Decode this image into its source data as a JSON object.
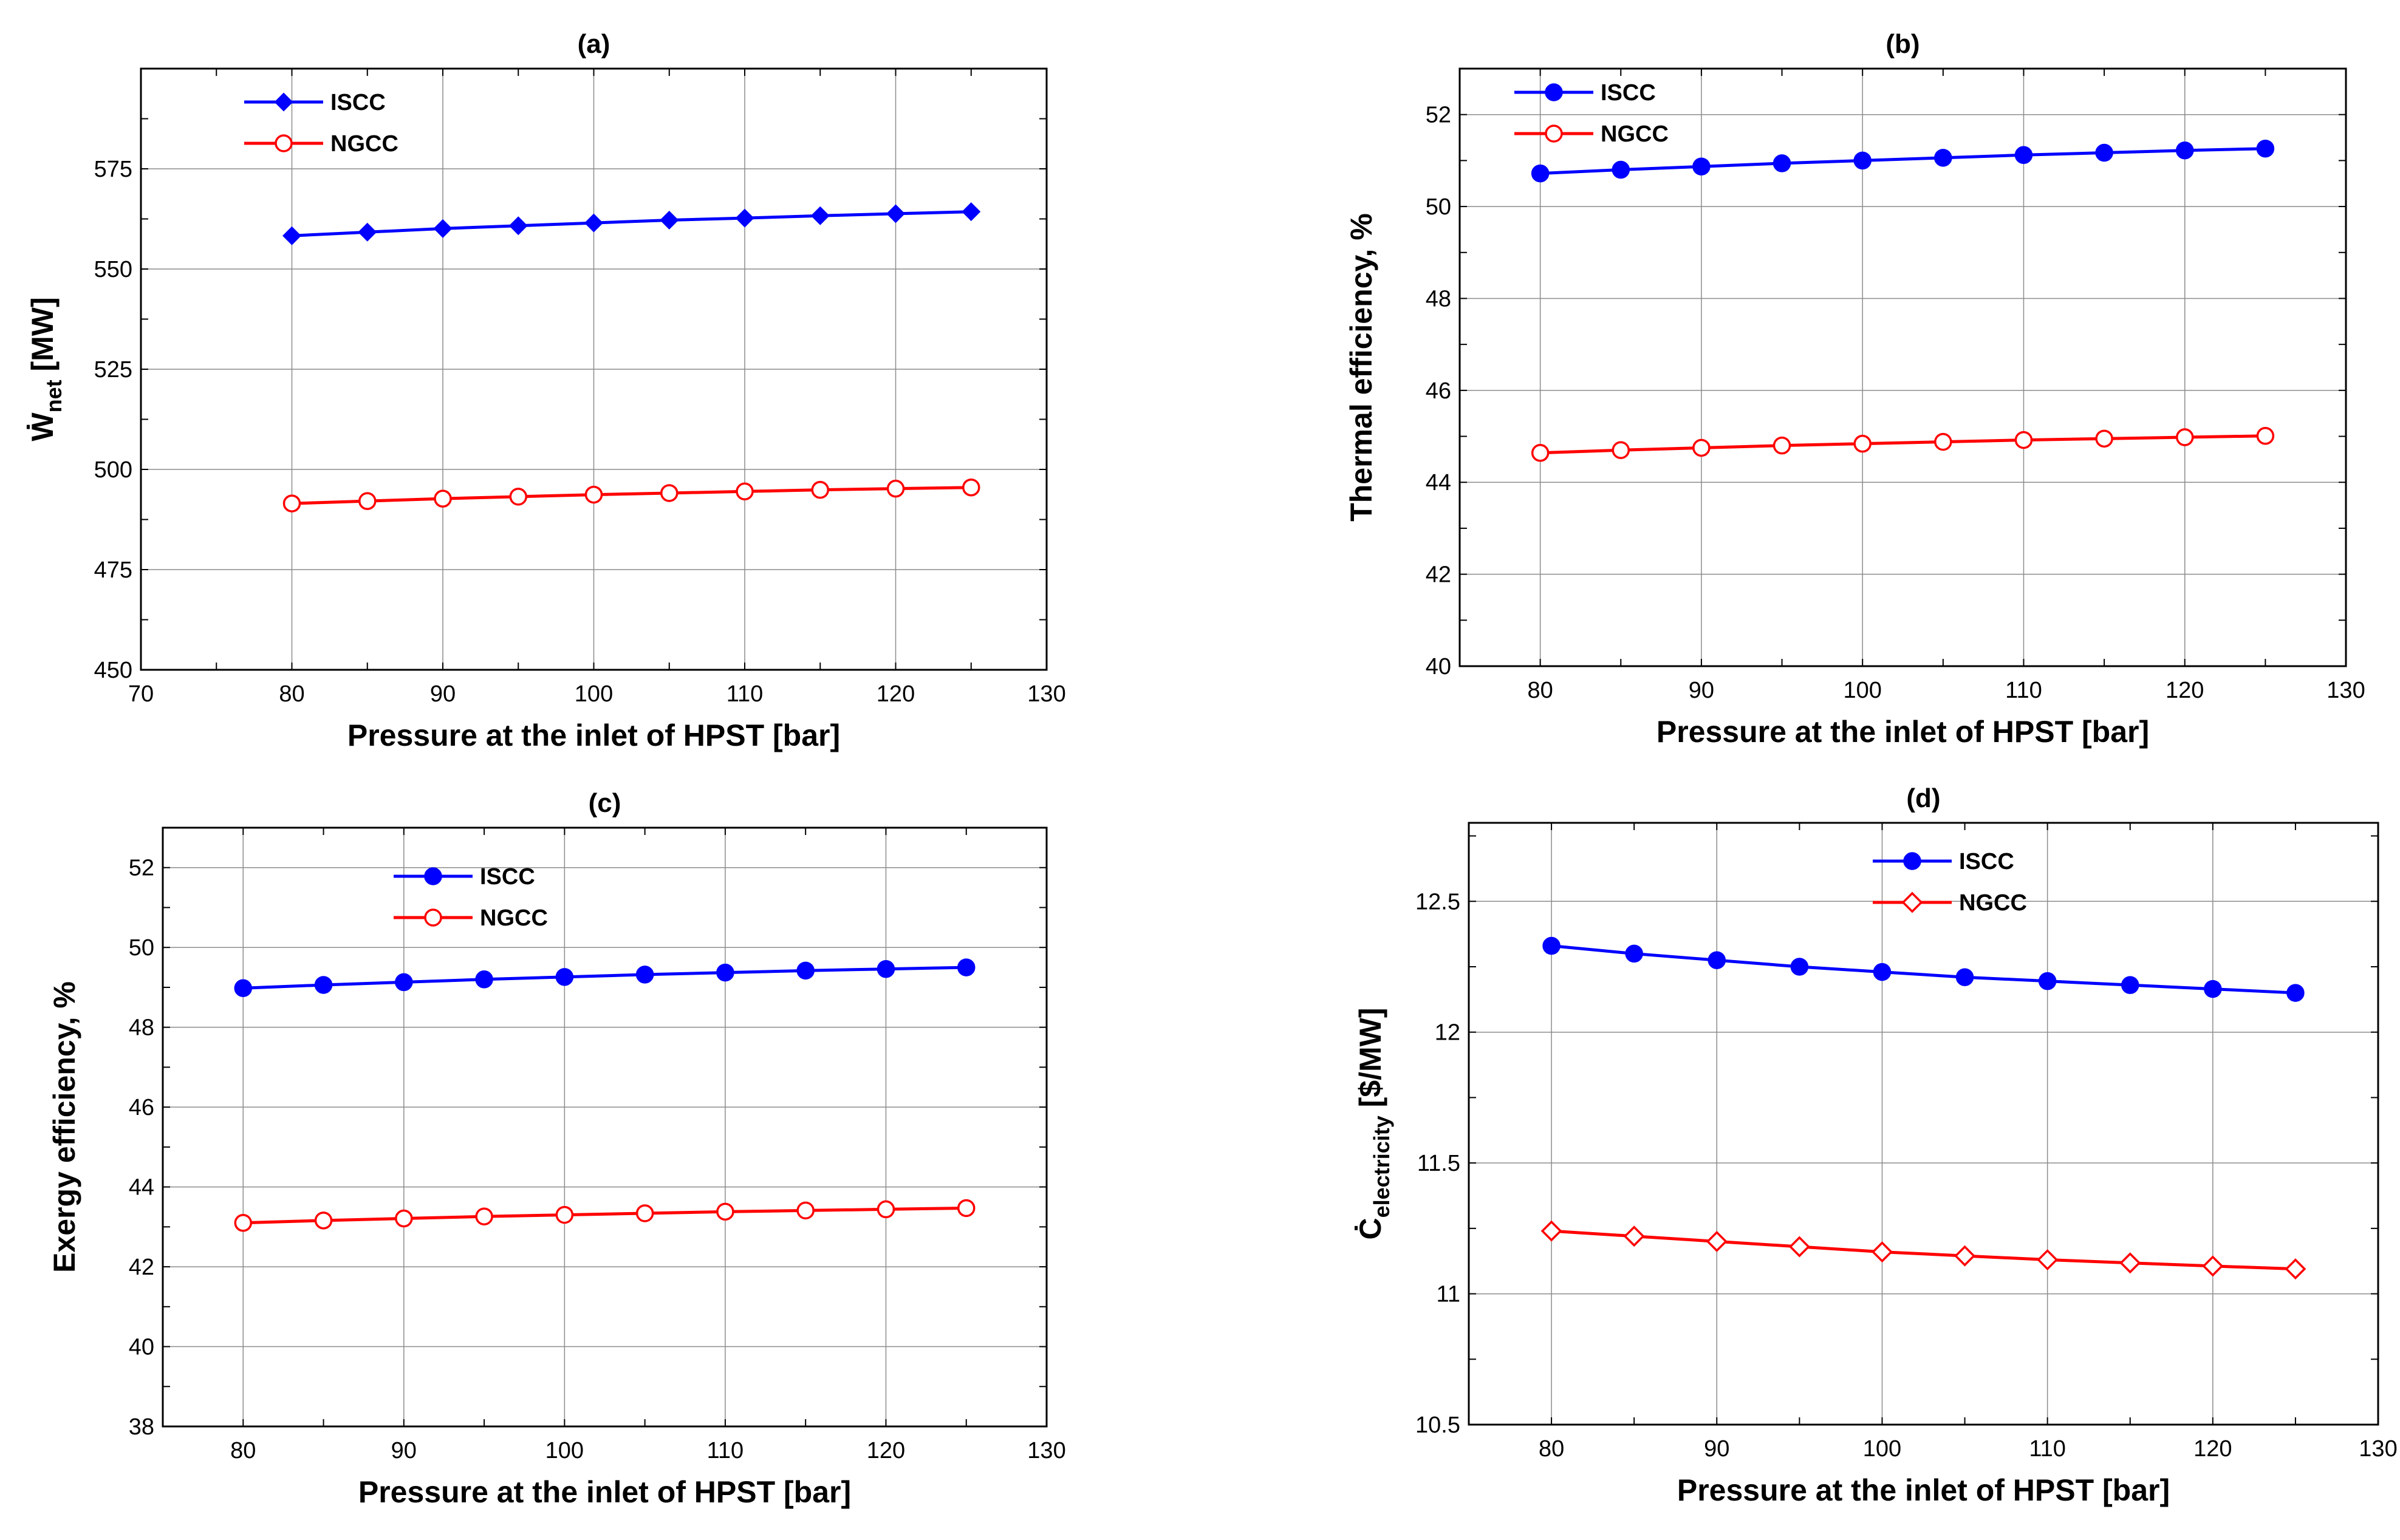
{
  "chart_data": [
    {
      "id": "a",
      "type": "line",
      "title": "(a)",
      "xlabel": "Pressure at the inlet of HPST [bar]",
      "ylabel": {
        "main": "Ẇ",
        "sub": "net",
        "unit": " [MW]"
      },
      "xlim": [
        70,
        130
      ],
      "ylim": [
        450,
        600
      ],
      "xticks": [
        70,
        80,
        90,
        100,
        110,
        120,
        130
      ],
      "yticks": [
        450,
        475,
        500,
        525,
        550,
        575
      ],
      "x": [
        80,
        85,
        90,
        95,
        100,
        105,
        110,
        115,
        120,
        125
      ],
      "legend_position": "top-left",
      "series": [
        {
          "name": "ISCC",
          "color": "#0000ff",
          "marker": "diamond-filled",
          "values": [
            558.3,
            559.2,
            560.1,
            560.8,
            561.5,
            562.2,
            562.7,
            563.3,
            563.8,
            564.3
          ]
        },
        {
          "name": "NGCC",
          "color": "#ff0000",
          "marker": "circle-open",
          "values": [
            491.5,
            492.1,
            492.7,
            493.2,
            493.7,
            494.1,
            494.5,
            494.9,
            495.2,
            495.5
          ]
        }
      ]
    },
    {
      "id": "b",
      "type": "line",
      "title": "(b)",
      "xlabel": "Pressure at the inlet of HPST [bar]",
      "ylabel": {
        "main": "Thermal efficiency, %",
        "sub": "",
        "unit": ""
      },
      "xlim": [
        75,
        130
      ],
      "ylim": [
        40,
        53
      ],
      "xticks": [
        80,
        90,
        100,
        110,
        120,
        130
      ],
      "yticks": [
        40,
        42,
        44,
        46,
        48,
        50,
        52
      ],
      "x": [
        80,
        85,
        90,
        95,
        100,
        105,
        110,
        115,
        120,
        125
      ],
      "legend_position": "top-left",
      "series": [
        {
          "name": "ISCC",
          "color": "#0000ff",
          "marker": "circle-filled",
          "values": [
            50.72,
            50.8,
            50.87,
            50.94,
            51.0,
            51.06,
            51.12,
            51.17,
            51.22,
            51.26
          ]
        },
        {
          "name": "NGCC",
          "color": "#ff0000",
          "marker": "circle-open",
          "values": [
            44.64,
            44.7,
            44.75,
            44.8,
            44.84,
            44.88,
            44.92,
            44.95,
            44.98,
            45.01
          ]
        }
      ]
    },
    {
      "id": "c",
      "type": "line",
      "title": "(c)",
      "xlabel": "Pressure at the inlet of HPST [bar]",
      "ylabel": {
        "main": "Exergy efficiency, %",
        "sub": "",
        "unit": ""
      },
      "xlim": [
        75,
        130
      ],
      "ylim": [
        38,
        53
      ],
      "xticks": [
        80,
        90,
        100,
        110,
        120,
        130
      ],
      "yticks": [
        38,
        40,
        42,
        44,
        46,
        48,
        50,
        52
      ],
      "x": [
        80,
        85,
        90,
        95,
        100,
        105,
        110,
        115,
        120,
        125
      ],
      "legend_position": "top-center",
      "series": [
        {
          "name": "ISCC",
          "color": "#0000ff",
          "marker": "circle-filled",
          "values": [
            48.98,
            49.06,
            49.13,
            49.2,
            49.26,
            49.32,
            49.37,
            49.42,
            49.46,
            49.5
          ]
        },
        {
          "name": "NGCC",
          "color": "#ff0000",
          "marker": "circle-open",
          "values": [
            43.1,
            43.16,
            43.21,
            43.26,
            43.3,
            43.34,
            43.38,
            43.41,
            43.44,
            43.47
          ]
        }
      ]
    },
    {
      "id": "d",
      "type": "line",
      "title": "(d)",
      "xlabel": "Pressure at the inlet of HPST [bar]",
      "ylabel": {
        "main": "Ċ",
        "sub": "electricity",
        "unit": " [$/MW]"
      },
      "xlim": [
        75,
        130
      ],
      "ylim": [
        10.5,
        12.8
      ],
      "xticks": [
        80,
        90,
        100,
        110,
        120,
        130
      ],
      "yticks": [
        10.5,
        11,
        11.5,
        12,
        12.5
      ],
      "x": [
        80,
        85,
        90,
        95,
        100,
        105,
        110,
        115,
        120,
        125
      ],
      "legend_position": "top-center",
      "series": [
        {
          "name": "ISCC",
          "color": "#0000ff",
          "marker": "circle-filled",
          "values": [
            12.33,
            12.3,
            12.275,
            12.25,
            12.23,
            12.21,
            12.195,
            12.18,
            12.165,
            12.15
          ]
        },
        {
          "name": "NGCC",
          "color": "#ff0000",
          "marker": "diamond-open",
          "values": [
            11.24,
            11.22,
            11.2,
            11.18,
            11.16,
            11.145,
            11.13,
            11.118,
            11.106,
            11.095
          ]
        }
      ]
    }
  ]
}
